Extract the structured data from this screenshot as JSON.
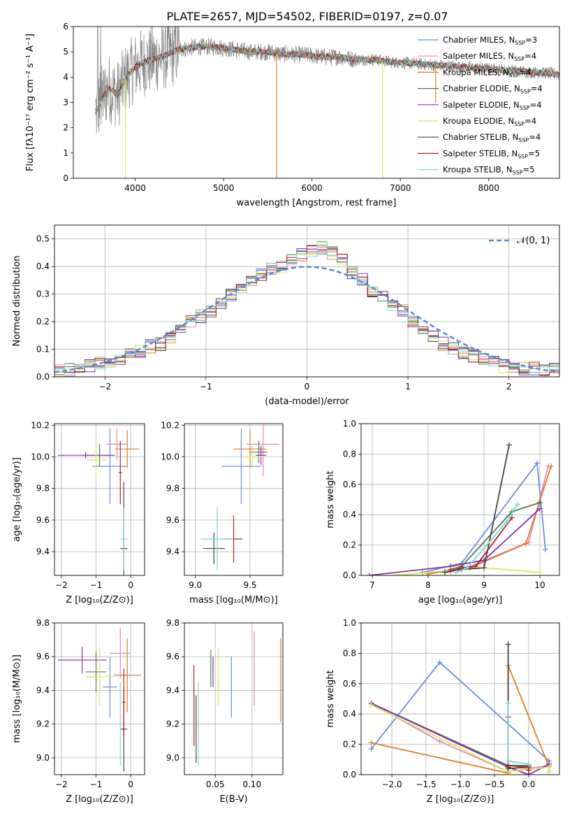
{
  "title": "PLATE=2657, MJD=54502, FIBERID=0197, z=0.07",
  "legend_labels": [
    {
      "pre": "Chabrier MILES, N",
      "sub": "SSP",
      "post": "=3",
      "color": "#6b8fd6"
    },
    {
      "pre": "Salpeter MILES, N",
      "sub": "SSP",
      "post": "=4",
      "color": "#e08ab8"
    },
    {
      "pre": "Kroupa MILES, N",
      "sub": "SSP",
      "post": "=4",
      "color": "#e07a28"
    },
    {
      "pre": "Chabrier ELODIE, N",
      "sub": "SSP",
      "post": "=4",
      "color": "#4c7a44"
    },
    {
      "pre": "Salpeter ELODIE, N",
      "sub": "SSP",
      "post": "=4",
      "color": "#8a2eb5"
    },
    {
      "pre": "Kroupa ELODIE, N",
      "sub": "SSP",
      "post": "=4",
      "color": "#d4e85a"
    },
    {
      "pre": "Chabrier STELIB, N",
      "sub": "SSP",
      "post": "=4",
      "color": "#444444"
    },
    {
      "pre": "Salpeter STELIB, N",
      "sub": "SSP",
      "post": "=5",
      "color": "#b02020"
    },
    {
      "pre": "Kroupa STELIB, N",
      "sub": "SSP",
      "post": "=5",
      "color": "#7fd6d6"
    }
  ],
  "chart_data": [
    {
      "id": "spectrum",
      "type": "line",
      "xlabel": "wavelength [Angstrom, rest frame]",
      "ylabel": "Flux [fλ10⁻¹⁷ erg cm⁻² s⁻¹ A⁻¹]",
      "xlim": [
        3300,
        8800
      ],
      "ylim": [
        0,
        6
      ],
      "xticks": [
        4000,
        5000,
        6000,
        7000,
        8000
      ],
      "yticks": [
        0,
        1,
        2,
        3,
        4,
        5,
        6
      ],
      "grid": false,
      "observed_color": "#808080",
      "continuum": {
        "x": [
          3550,
          3600,
          3700,
          3800,
          3900,
          4000,
          4100,
          4300,
          4500,
          4700,
          4900,
          5100,
          5300,
          5500,
          5700,
          5900,
          6100,
          6300,
          6500,
          6700,
          6900,
          7100,
          7300,
          7500,
          7700,
          7900,
          8100,
          8300,
          8500,
          8700,
          8800
        ],
        "y": [
          2.6,
          3.0,
          3.6,
          3.3,
          4.0,
          4.4,
          4.6,
          4.8,
          5.1,
          5.2,
          5.2,
          5.1,
          5.0,
          5.0,
          4.9,
          4.9,
          4.8,
          4.8,
          4.7,
          4.7,
          4.6,
          4.55,
          4.5,
          4.45,
          4.4,
          4.35,
          4.3,
          4.25,
          4.2,
          4.15,
          4.1
        ]
      },
      "model_spikes": [
        {
          "x": 3890,
          "y_min": 0.0,
          "color": "#d4e85a"
        },
        {
          "x": 5600,
          "y_min": 0.0,
          "color": "#e07a28"
        },
        {
          "x": 6800,
          "y_min": 0.0,
          "color": "#d4e85a"
        },
        {
          "x": 7400,
          "y_min": 3.0,
          "color": "#e07a28"
        }
      ]
    },
    {
      "id": "residuals",
      "type": "step",
      "xlabel": "(data-model)/error",
      "ylabel": "Normed distribution",
      "xlim": [
        -2.5,
        2.5
      ],
      "ylim": [
        0,
        0.55
      ],
      "xticks": [
        -2,
        -1,
        0,
        1,
        2
      ],
      "yticks": [
        0.0,
        0.1,
        0.2,
        0.3,
        0.4,
        0.5
      ],
      "grid": true,
      "legend": {
        "label": "𝒩(0, 1)",
        "location": "upper right"
      },
      "gaussian": {
        "mean": 0,
        "sigma": 1,
        "color": "#5a8ad8"
      },
      "hist_bins": [
        -2.5,
        -2.4,
        -2.3,
        -2.2,
        -2.1,
        -2.0,
        -1.9,
        -1.8,
        -1.7,
        -1.6,
        -1.5,
        -1.4,
        -1.3,
        -1.2,
        -1.1,
        -1.0,
        -0.9,
        -0.8,
        -0.7,
        -0.6,
        -0.5,
        -0.4,
        -0.3,
        -0.2,
        -0.1,
        0.0,
        0.1,
        0.2,
        0.3,
        0.4,
        0.5,
        0.6,
        0.7,
        0.8,
        0.9,
        1.0,
        1.1,
        1.2,
        1.3,
        1.4,
        1.5,
        1.6,
        1.7,
        1.8,
        1.9,
        2.0,
        2.1,
        2.2,
        2.3,
        2.4,
        2.5
      ],
      "hist_base": [
        0.02,
        0.025,
        0.03,
        0.04,
        0.05,
        0.05,
        0.06,
        0.08,
        0.09,
        0.11,
        0.12,
        0.14,
        0.17,
        0.2,
        0.22,
        0.24,
        0.27,
        0.3,
        0.32,
        0.35,
        0.37,
        0.39,
        0.4,
        0.42,
        0.44,
        0.46,
        0.47,
        0.45,
        0.42,
        0.38,
        0.35,
        0.31,
        0.29,
        0.26,
        0.24,
        0.2,
        0.17,
        0.15,
        0.12,
        0.1,
        0.09,
        0.075,
        0.06,
        0.05,
        0.04,
        0.035,
        0.03,
        0.03,
        0.03,
        0.03
      ]
    },
    {
      "id": "age_vs_Z",
      "type": "errorbar",
      "xlabel": "Z [log₁₀(Z/Z⊙)]",
      "ylabel": "age  [log₁₀(age/yr)]",
      "xlim": [
        -2.2,
        0.4
      ],
      "ylim": [
        9.25,
        10.21
      ],
      "xticks": [
        -2,
        -1,
        0
      ],
      "yticks": [
        9.4,
        9.6,
        9.8,
        10.0,
        10.2
      ],
      "grid": true,
      "points": [
        {
          "series": 0,
          "x": -0.6,
          "xerr": 0.5,
          "y": 9.94,
          "yerr": 0.24
        },
        {
          "series": 1,
          "x": -0.4,
          "xerr": 0.3,
          "y": 10.08,
          "yerr": 0.1
        },
        {
          "series": 2,
          "x": -0.1,
          "xerr": 0.35,
          "y": 10.05,
          "yerr": 0.12
        },
        {
          "series": 3,
          "x": -0.9,
          "xerr": 0.45,
          "y": 10.01,
          "yerr": 0.07
        },
        {
          "series": 4,
          "x": -1.3,
          "xerr": 0.8,
          "y": 10.01,
          "yerr": 0.02
        },
        {
          "series": 5,
          "x": -1.0,
          "xerr": 0.3,
          "y": 9.98,
          "yerr": 0.1
        },
        {
          "series": 6,
          "x": -0.2,
          "xerr": 0.1,
          "y": 9.42,
          "yerr": 0.42
        },
        {
          "series": 7,
          "x": -0.3,
          "xerr": 0.05,
          "y": 9.9,
          "yerr": 0.2
        },
        {
          "series": 8,
          "x": -0.2,
          "xerr": 0.1,
          "y": 9.48,
          "yerr": 0.2
        }
      ]
    },
    {
      "id": "age_vs_mass",
      "type": "errorbar",
      "xlabel": "mass [log₁₀(M/M⊙)]",
      "ylabel": "",
      "xlim": [
        8.9,
        9.8
      ],
      "ylim": [
        9.25,
        10.21
      ],
      "xticks": [
        9.0,
        9.5
      ],
      "yticks": [
        9.4,
        9.6,
        9.8,
        10.0,
        10.2
      ],
      "grid": true,
      "points": [
        {
          "series": 0,
          "x": 9.42,
          "xerr": 0.18,
          "y": 9.94,
          "yerr": 0.24
        },
        {
          "series": 1,
          "x": 9.62,
          "xerr": 0.15,
          "y": 10.08,
          "yerr": 0.2
        },
        {
          "series": 2,
          "x": 9.5,
          "xerr": 0.15,
          "y": 10.05,
          "yerr": 0.12
        },
        {
          "series": 3,
          "x": 9.58,
          "xerr": 0.08,
          "y": 10.03,
          "yerr": 0.07
        },
        {
          "series": 4,
          "x": 9.6,
          "xerr": 0.05,
          "y": 10.01,
          "yerr": 0.06
        },
        {
          "series": 5,
          "x": 9.52,
          "xerr": 0.1,
          "y": 10.0,
          "yerr": 0.07
        },
        {
          "series": 6,
          "x": 9.17,
          "xerr": 0.1,
          "y": 9.42,
          "yerr": 0.1
        },
        {
          "series": 7,
          "x": 9.35,
          "xerr": 0.08,
          "y": 9.48,
          "yerr": 0.15
        },
        {
          "series": 8,
          "x": 9.2,
          "xerr": 0.15,
          "y": 9.48,
          "yerr": 0.2
        }
      ]
    },
    {
      "id": "mass_weight_vs_age",
      "type": "line",
      "xlabel": "age  [log₁₀(age/yr)]",
      "ylabel": "mass weight",
      "xlim": [
        6.8,
        10.35
      ],
      "ylim": [
        0,
        1
      ],
      "xticks": [
        7,
        8,
        9,
        10
      ],
      "yticks": [
        0.0,
        0.2,
        0.4,
        0.6,
        0.8,
        1.0
      ],
      "grid": true,
      "series": [
        {
          "series": 0,
          "x": [
            7.9,
            8.6,
            9.95,
            10.1
          ],
          "y": [
            0.02,
            0.08,
            0.74,
            0.17
          ]
        },
        {
          "series": 1,
          "x": [
            8.0,
            8.7,
            9.8,
            10.15
          ],
          "y": [
            0.01,
            0.05,
            0.22,
            0.72
          ]
        },
        {
          "series": 2,
          "x": [
            8.0,
            8.75,
            9.75,
            10.2
          ],
          "y": [
            0.01,
            0.05,
            0.21,
            0.72
          ]
        },
        {
          "series": 3,
          "x": [
            8.3,
            8.6,
            9.5,
            10.0
          ],
          "y": [
            0.03,
            0.06,
            0.42,
            0.48
          ]
        },
        {
          "series": 4,
          "x": [
            6.95,
            8.4,
            9.0,
            10.0
          ],
          "y": [
            0.0,
            0.06,
            0.1,
            0.44
          ]
        },
        {
          "series": 5,
          "x": [
            7.4,
            8.3,
            9.0,
            10.0
          ],
          "y": [
            0.0,
            0.03,
            0.05,
            0.02
          ]
        },
        {
          "series": 6,
          "x": [
            8.3,
            8.6,
            9.0,
            9.45
          ],
          "y": [
            0.02,
            0.04,
            0.05,
            0.86
          ]
        },
        {
          "series": 7,
          "x": [
            8.4,
            8.6,
            8.85,
            9.5
          ],
          "y": [
            0.03,
            0.05,
            0.06,
            0.38
          ]
        },
        {
          "series": 8,
          "x": [
            8.5,
            8.7,
            9.4,
            9.6
          ],
          "y": [
            0.02,
            0.05,
            0.35,
            0.47
          ]
        }
      ]
    },
    {
      "id": "mass_vs_Z",
      "type": "errorbar",
      "xlabel": "Z [log₁₀(Z/Z⊙)]",
      "ylabel": "mass [log₁₀(M/M⊙)]",
      "xlim": [
        -2.2,
        0.4
      ],
      "ylim": [
        8.9,
        9.8
      ],
      "xticks": [
        -2,
        -1,
        0
      ],
      "yticks": [
        9.0,
        9.2,
        9.4,
        9.6,
        9.8
      ],
      "grid": true,
      "points": [
        {
          "series": 0,
          "x": -0.6,
          "xerr": 0.2,
          "y": 9.42,
          "yerr": 0.18
        },
        {
          "series": 1,
          "x": -0.3,
          "xerr": 0.3,
          "y": 9.62,
          "yerr": 0.15
        },
        {
          "series": 2,
          "x": -0.1,
          "xerr": 0.4,
          "y": 9.49,
          "yerr": 0.22
        },
        {
          "series": 3,
          "x": -1.0,
          "xerr": 0.3,
          "y": 9.51,
          "yerr": 0.12
        },
        {
          "series": 4,
          "x": -1.4,
          "xerr": 0.7,
          "y": 9.58,
          "yerr": 0.08
        },
        {
          "series": 5,
          "x": -0.9,
          "xerr": 0.4,
          "y": 9.48,
          "yerr": 0.17
        },
        {
          "series": 6,
          "x": -0.2,
          "xerr": 0.1,
          "y": 9.17,
          "yerr": 0.25
        },
        {
          "series": 7,
          "x": -0.2,
          "xerr": 0.05,
          "y": 9.33,
          "yerr": 0.2
        },
        {
          "series": 8,
          "x": -0.3,
          "xerr": 0.03,
          "y": 9.2,
          "yerr": 0.25
        }
      ]
    },
    {
      "id": "mass_vs_ebv",
      "type": "errorbar",
      "xlabel": "E(B-V)",
      "ylabel": "",
      "xlim": [
        0.008,
        0.142
      ],
      "ylim": [
        8.9,
        9.8
      ],
      "xticks": [
        0.05,
        0.1
      ],
      "yticks": [
        9.0,
        9.2,
        9.4,
        9.6,
        9.8
      ],
      "grid": true,
      "points": [
        {
          "series": 0,
          "x": 0.072,
          "xerr": 0,
          "y": 9.42,
          "yerr": 0.18
        },
        {
          "series": 1,
          "x": 0.103,
          "xerr": 0,
          "y": 9.53,
          "yerr": 0.22
        },
        {
          "series": 2,
          "x": 0.139,
          "xerr": 0,
          "y": 9.46,
          "yerr": 0.25
        },
        {
          "series": 3,
          "x": 0.044,
          "xerr": 0,
          "y": 9.53,
          "yerr": 0.11
        },
        {
          "series": 4,
          "x": 0.047,
          "xerr": 0,
          "y": 9.51,
          "yerr": 0.09
        },
        {
          "series": 5,
          "x": 0.054,
          "xerr": 0,
          "y": 9.48,
          "yerr": 0.17
        },
        {
          "series": 6,
          "x": 0.024,
          "xerr": 0,
          "y": 9.17,
          "yerr": 0.2
        },
        {
          "series": 7,
          "x": 0.021,
          "xerr": 0,
          "y": 9.31,
          "yerr": 0.24
        },
        {
          "series": 8,
          "x": 0.027,
          "xerr": 0,
          "y": 9.2,
          "yerr": 0.25
        }
      ]
    },
    {
      "id": "mass_weight_vs_Z",
      "type": "line",
      "xlabel": "Z [log₁₀(Z/Z⊙)]",
      "ylabel": "mass weight",
      "xlim": [
        -2.45,
        0.45
      ],
      "ylim": [
        0,
        1
      ],
      "xticks": [
        -2.0,
        -1.5,
        -1.0,
        -0.5,
        0.0
      ],
      "yticks": [
        0.0,
        0.2,
        0.4,
        0.6,
        0.8,
        1.0
      ],
      "grid": true,
      "series": [
        {
          "series": 0,
          "x": [
            -2.3,
            -1.3,
            0.3,
            0.3
          ],
          "y": [
            0.17,
            0.74,
            0.09,
            0.02
          ]
        },
        {
          "series": 1,
          "x": [
            -2.3,
            -1.3,
            -0.3,
            0.3
          ],
          "y": [
            0.47,
            0.22,
            0.02,
            0.06
          ]
        },
        {
          "series": 2,
          "x": [
            -2.3,
            -0.3,
            -0.3,
            0.3
          ],
          "y": [
            0.21,
            0.01,
            0.72,
            0.05
          ]
        },
        {
          "series": 3,
          "x": [
            -2.3,
            -0.3,
            0.0,
            0.0
          ],
          "y": [
            0.47,
            0.06,
            0.06,
            0.0
          ]
        },
        {
          "series": 4,
          "x": [
            -2.3,
            -0.3,
            0.0,
            0.3
          ],
          "y": [
            0.47,
            0.05,
            0.0,
            0.07
          ]
        },
        {
          "series": 5,
          "x": [
            -2.3,
            -0.3,
            0.3,
            0.3
          ],
          "y": [
            0.46,
            0.02,
            0.05,
            0.02
          ]
        },
        {
          "series": 6,
          "x": [
            -0.3,
            -0.3,
            -0.3,
            0.0
          ],
          "y": [
            0.86,
            0.05,
            0.04,
            0.05
          ]
        },
        {
          "series": 7,
          "x": [
            -0.3,
            -0.3,
            0.0,
            0.0
          ],
          "y": [
            0.38,
            0.06,
            0.05,
            0.03
          ]
        },
        {
          "series": 8,
          "x": [
            -0.3,
            -0.3,
            -0.3,
            0.0
          ],
          "y": [
            0.47,
            0.35,
            0.09,
            0.07
          ]
        }
      ]
    }
  ]
}
